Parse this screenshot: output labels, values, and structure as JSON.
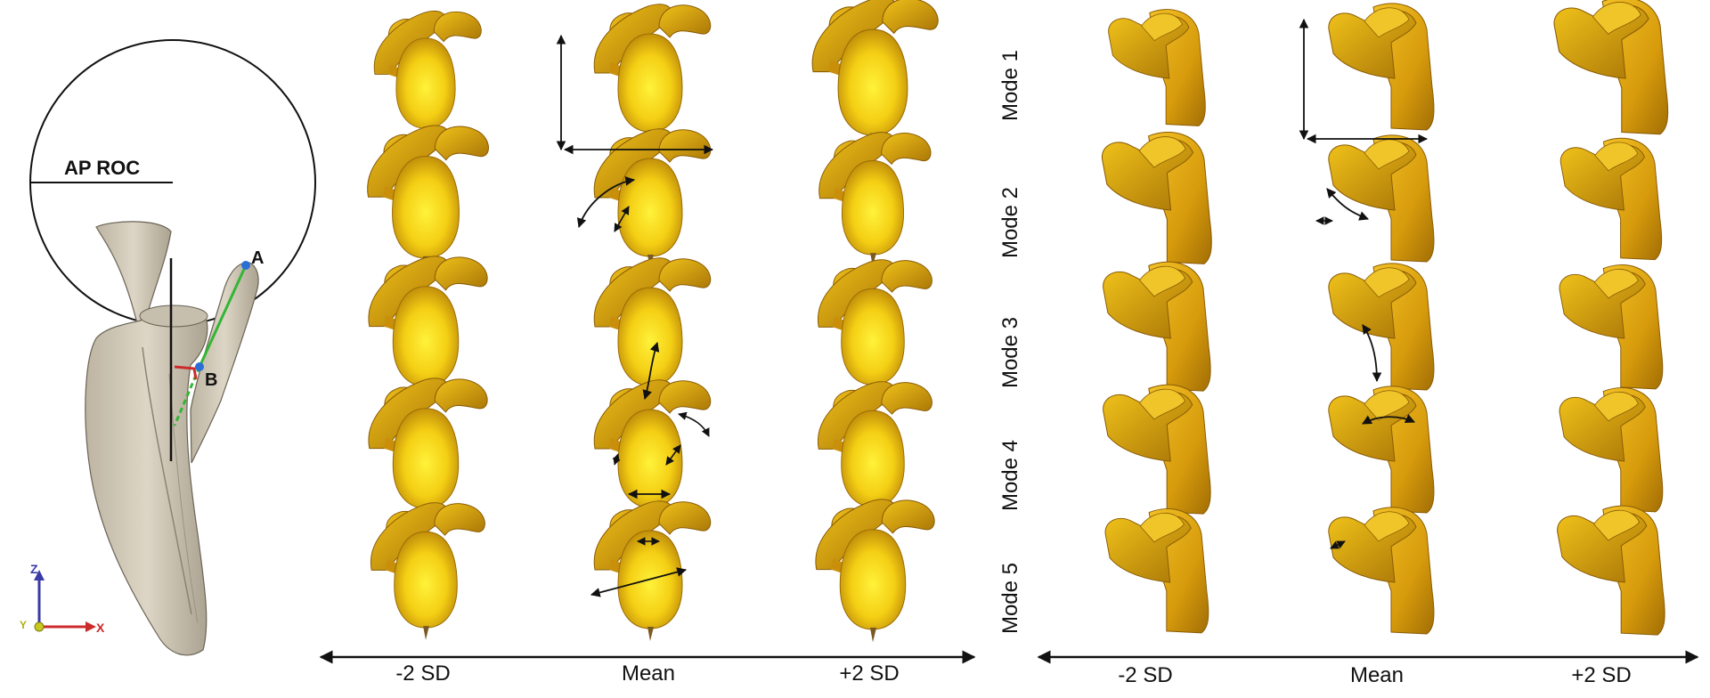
{
  "left_panel": {
    "circle_label": "AP ROC",
    "point_a": "A",
    "point_b": "B",
    "axes": {
      "z": "Z",
      "y": "Y",
      "x": "X"
    },
    "colors": {
      "bone": "#d9d2c2",
      "z_axis": "#3b3ba8",
      "x_axis": "#cc2b2b",
      "y_axis": "#c8c81e",
      "green_line": "#35b535",
      "marker": "#2a6fd6"
    }
  },
  "middle_panel": {
    "columns": [
      "-2 SD",
      "Mean",
      "+2 SD"
    ],
    "rows": 5
  },
  "right_panel": {
    "row_labels": [
      "Mode 1",
      "Mode 2",
      "Mode 3",
      "Mode 4",
      "Mode 5"
    ],
    "columns": [
      "-2 SD",
      "Mean",
      "+2 SD"
    ]
  },
  "colors": {
    "bone_gold": "#e2a614",
    "bone_bright": "#f7e21c",
    "bone_dark": "#9a6c05"
  }
}
